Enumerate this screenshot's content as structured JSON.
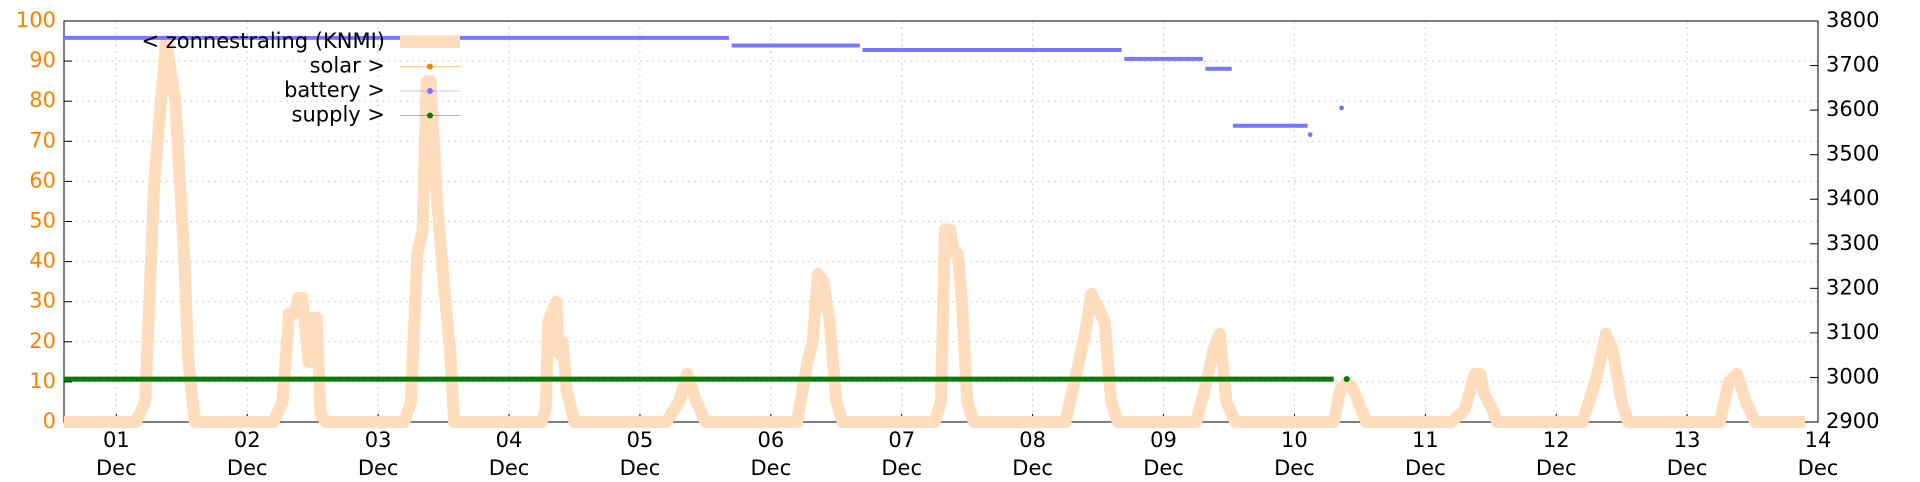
{
  "chart_data": {
    "type": "line",
    "xlim": [
      0.6,
      14
    ],
    "ylim": [
      0,
      100
    ],
    "y2lim": [
      2900,
      3800
    ],
    "xticks": [
      {
        "value": 1,
        "label": "01\nDec"
      },
      {
        "value": 2,
        "label": "02\nDec"
      },
      {
        "value": 3,
        "label": "03\nDec"
      },
      {
        "value": 4,
        "label": "04\nDec"
      },
      {
        "value": 5,
        "label": "05\nDec"
      },
      {
        "value": 6,
        "label": "06\nDec"
      },
      {
        "value": 7,
        "label": "07\nDec"
      },
      {
        "value": 8,
        "label": "08\nDec"
      },
      {
        "value": 9,
        "label": "09\nDec"
      },
      {
        "value": 10,
        "label": "10\nDec"
      },
      {
        "value": 11,
        "label": "11\nDec"
      },
      {
        "value": 12,
        "label": "12\nDec"
      },
      {
        "value": 13,
        "label": "13\nDec"
      },
      {
        "value": 14,
        "label": "14\nDec"
      }
    ],
    "yticks": [
      0,
      10,
      20,
      30,
      40,
      50,
      60,
      70,
      80,
      90,
      100
    ],
    "y2ticks": [
      2900,
      3000,
      3100,
      3200,
      3300,
      3400,
      3500,
      3600,
      3700,
      3800
    ],
    "ytick_color": "#ff8000",
    "y2tick_color": "#000000",
    "grid": true,
    "legend": "upper left",
    "series": [
      {
        "name": "< zonnestraling (KNMI)",
        "color": "#ffdcbc",
        "width": 12,
        "x": [
          0.6,
          1.15,
          1.22,
          1.29,
          1.38,
          1.45,
          1.52,
          1.55,
          1.6,
          2.2,
          2.27,
          2.32,
          2.36,
          2.39,
          2.42,
          2.47,
          2.5,
          2.53,
          2.56,
          2.6,
          3.2,
          3.25,
          3.3,
          3.34,
          3.37,
          3.4,
          3.45,
          3.5,
          3.55,
          3.58,
          4.25,
          4.28,
          4.3,
          4.36,
          4.38,
          4.41,
          4.44,
          4.5,
          5.2,
          5.3,
          5.36,
          5.42,
          5.5,
          6.2,
          6.28,
          6.32,
          6.36,
          6.4,
          6.45,
          6.5,
          6.55,
          7.25,
          7.3,
          7.33,
          7.37,
          7.4,
          7.43,
          7.46,
          7.5,
          7.55,
          8.25,
          8.32,
          8.4,
          8.45,
          8.55,
          8.6,
          8.65,
          9.25,
          9.33,
          9.38,
          9.43,
          9.48,
          9.55,
          10.3,
          10.35,
          10.4,
          10.45,
          10.55,
          11.2,
          11.3,
          11.38,
          11.42,
          11.45,
          11.5,
          11.55,
          12.2,
          12.3,
          12.38,
          12.43,
          12.5,
          12.55,
          13.25,
          13.32,
          13.38,
          13.45,
          13.52,
          13.9
        ],
        "values": [
          0,
          0,
          5,
          60,
          95,
          80,
          40,
          15,
          0,
          0,
          5,
          27,
          27,
          31,
          31,
          15,
          26,
          26,
          2,
          0,
          0,
          5,
          42,
          48,
          85,
          85,
          55,
          35,
          18,
          0,
          0,
          3,
          25,
          30,
          17,
          20,
          8,
          0,
          0,
          5,
          12,
          6,
          0,
          0,
          15,
          20,
          37,
          35,
          25,
          5,
          0,
          0,
          5,
          48,
          48,
          42,
          42,
          30,
          5,
          0,
          0,
          10,
          22,
          32,
          25,
          5,
          0,
          0,
          10,
          18,
          22,
          5,
          0,
          0,
          8,
          10,
          8,
          0,
          0,
          3,
          12,
          12,
          7,
          4,
          0,
          0,
          10,
          22,
          18,
          5,
          0,
          0,
          10,
          12,
          5,
          0,
          0
        ]
      },
      {
        "name": "solar >",
        "color": "#ff8000",
        "width": 2,
        "x": [],
        "values": []
      },
      {
        "name": "battery >",
        "color": "#7777ff",
        "width": 4,
        "axis": "y2",
        "x": [
          0.6,
          5.68,
          5.69,
          5.7,
          6.68,
          6.69,
          6.7,
          8.68,
          8.69,
          8.7,
          9.3,
          9.31,
          9.32,
          9.52,
          9.525,
          9.53,
          10.1,
          10.11,
          10.12,
          10.2,
          10.36
        ],
        "values": [
          3762,
          3762,
          null,
          3745,
          3745,
          null,
          3735,
          3735,
          null,
          3715,
          3715,
          null,
          3693,
          3693,
          null,
          3565,
          3565,
          null,
          3545,
          null,
          3605
        ]
      },
      {
        "name": "supply >",
        "color": "#0a7a0a",
        "width": 5,
        "x": [
          0.6,
          10.3,
          10.35,
          10.4
        ],
        "values": [
          10.7,
          10.7,
          null,
          10.7
        ]
      }
    ]
  }
}
